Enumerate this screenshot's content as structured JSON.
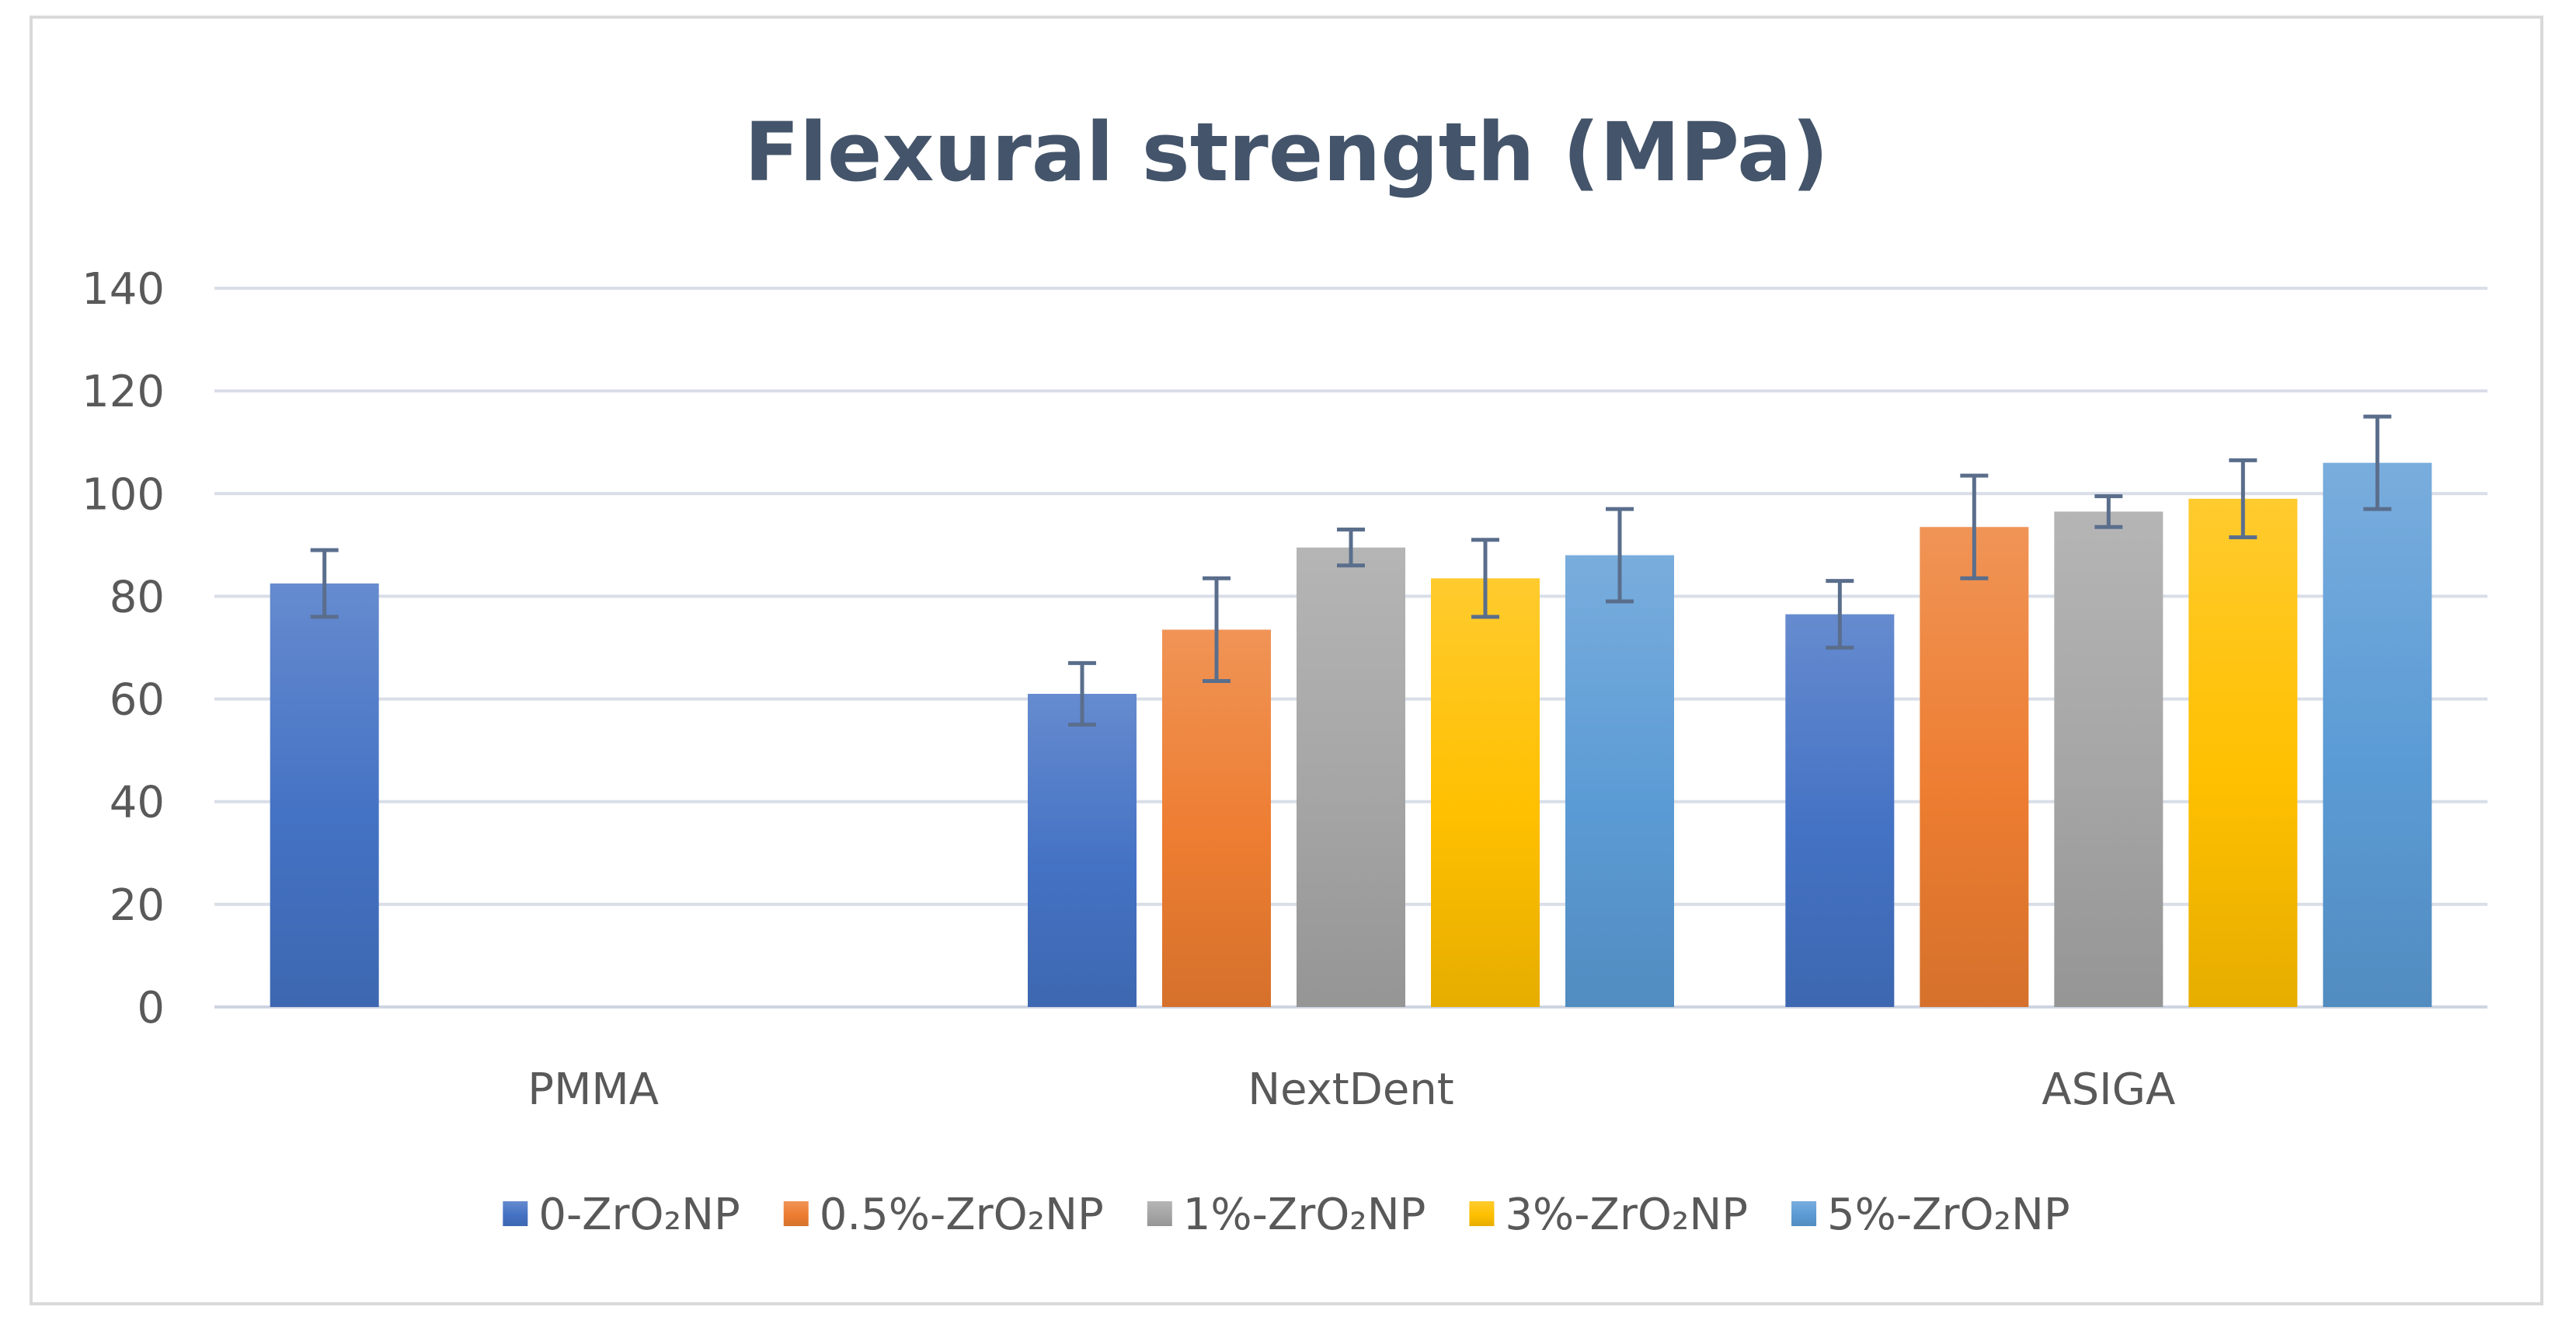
{
  "chart_data": {
    "type": "bar",
    "title": "Flexural strength (MPa)",
    "xlabel": "",
    "ylabel": "",
    "ylim": [
      0,
      140
    ],
    "yticks": [
      0,
      20,
      40,
      60,
      80,
      100,
      120,
      140
    ],
    "grid": true,
    "legend": "bottom",
    "categories": [
      "PMMA",
      "NextDent",
      "ASIGA"
    ],
    "series": [
      {
        "name": "0-ZrO₂NP",
        "color": "#4472c4",
        "values": [
          82.5,
          61,
          76.5
        ],
        "errors": [
          6.5,
          6,
          6.5
        ]
      },
      {
        "name": "0.5%-ZrO₂NP",
        "color": "#ed7d31",
        "values": [
          null,
          73.5,
          93.5
        ],
        "errors": [
          null,
          10,
          10
        ]
      },
      {
        "name": "1%-ZrO₂NP",
        "color": "#a5a5a5",
        "values": [
          null,
          89.5,
          96.5
        ],
        "errors": [
          null,
          3.5,
          3
        ]
      },
      {
        "name": "3%-ZrO₂NP",
        "color": "#ffc000",
        "values": [
          null,
          83.5,
          99
        ],
        "errors": [
          null,
          7.5,
          7.5
        ]
      },
      {
        "name": "5%-ZrO₂NP",
        "color": "#5b9bd5",
        "values": [
          null,
          88,
          106
        ],
        "errors": [
          null,
          9,
          9
        ]
      }
    ],
    "error_bar_color": "#5a6e8c"
  }
}
